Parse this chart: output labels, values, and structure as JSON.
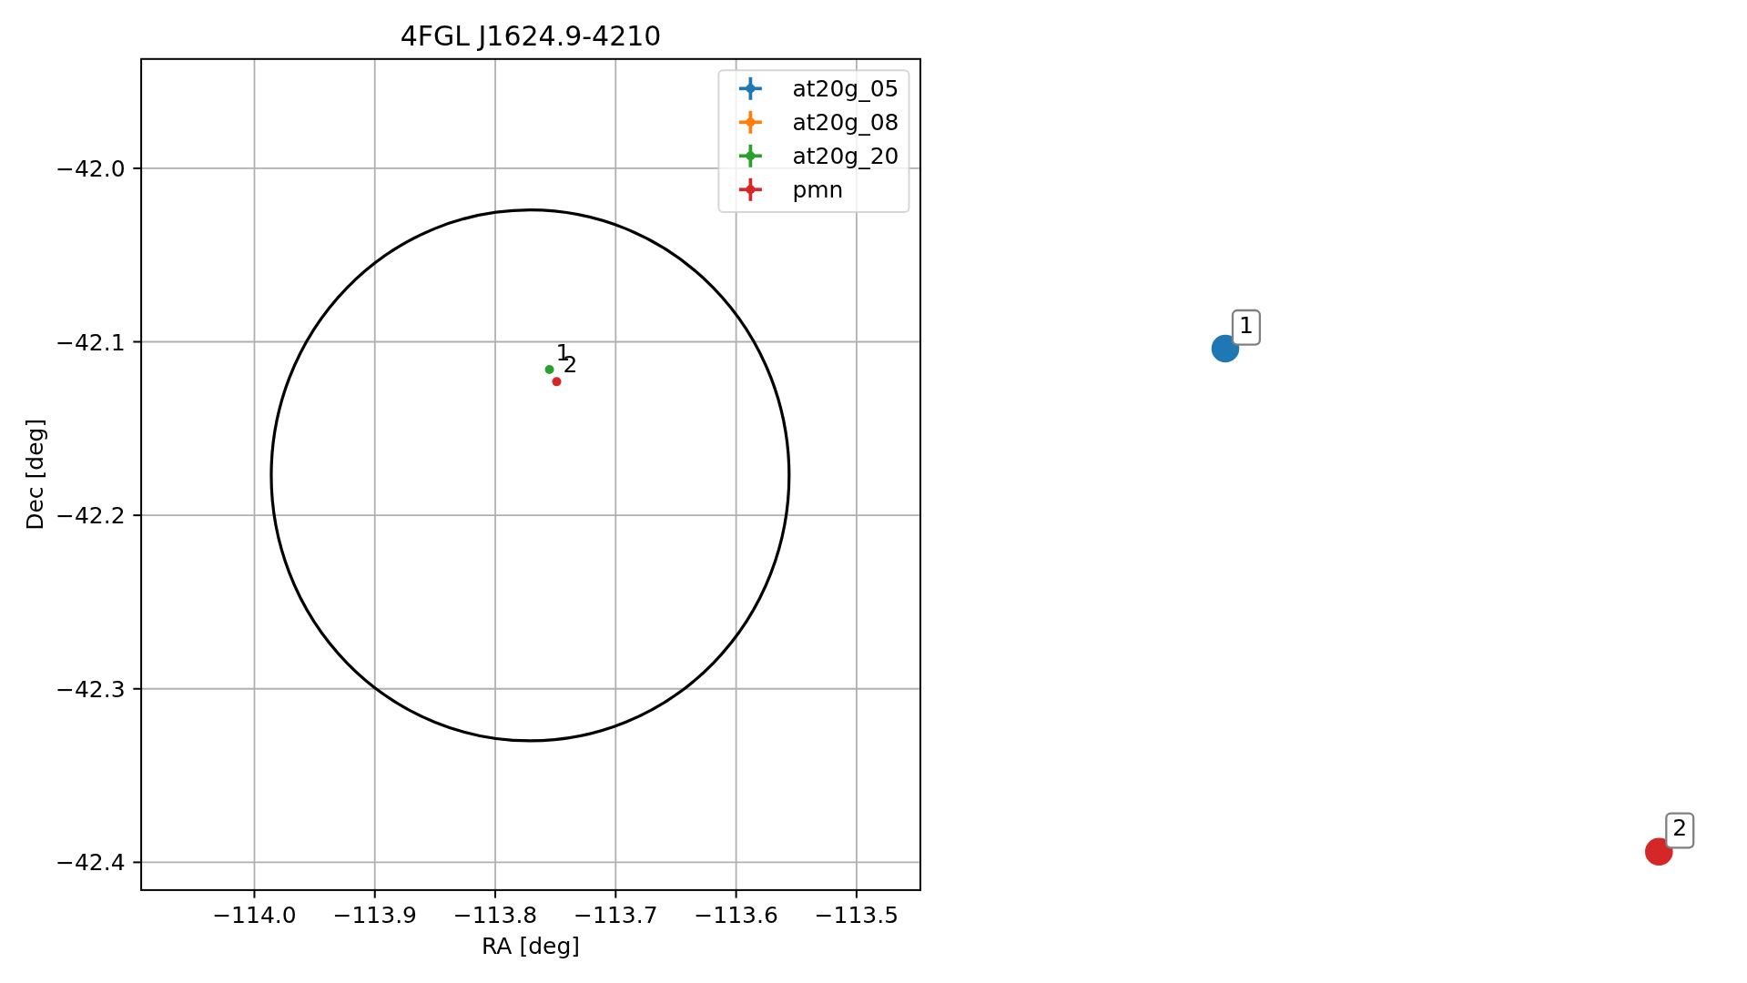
{
  "chart_data": [
    {
      "type": "scatter",
      "title": "4FGL J1624.9-4210",
      "xlabel": "RA [deg]",
      "ylabel": "Dec [deg]",
      "xlim": [
        -114.094,
        -113.447
      ],
      "ylim": [
        -42.416,
        -41.937
      ],
      "xticks": [
        {
          "value": -114.0,
          "label": "−114.0"
        },
        {
          "value": -113.9,
          "label": "−113.9"
        },
        {
          "value": -113.8,
          "label": "−113.8"
        },
        {
          "value": -113.7,
          "label": "−113.7"
        },
        {
          "value": -113.6,
          "label": "−113.6"
        },
        {
          "value": -113.5,
          "label": "−113.5"
        }
      ],
      "yticks": [
        {
          "value": -42.4,
          "label": "−42.4"
        },
        {
          "value": -42.3,
          "label": "−42.3"
        },
        {
          "value": -42.2,
          "label": "−42.2"
        },
        {
          "value": -42.1,
          "label": "−42.1"
        },
        {
          "value": -42.0,
          "label": "−42.0"
        }
      ],
      "grid": true,
      "legend": "top right",
      "series": [
        {
          "name": "at20g_05",
          "color": "#1f77b4",
          "marker": "circle",
          "x": [
            null
          ],
          "values": [
            null
          ]
        },
        {
          "name": "at20g_08",
          "color": "#ff7f0e",
          "marker": "circle",
          "x": [
            null
          ],
          "values": [
            null
          ]
        },
        {
          "name": "at20g_20",
          "color": "#2ca02c",
          "marker": "circle",
          "x": [
            -113.755
          ],
          "values": [
            -42.116
          ]
        },
        {
          "name": "pmn",
          "color": "#d62728",
          "marker": "circle",
          "x": [
            -113.749
          ],
          "values": [
            -42.123
          ]
        }
      ],
      "annotations": [
        {
          "text": "1",
          "x": -113.755,
          "y": -42.116
        },
        {
          "text": "2",
          "x": -113.749,
          "y": -42.123
        }
      ]
    },
    {
      "type": "other",
      "annotations": [
        "1",
        "2"
      ]
    }
  ]
}
